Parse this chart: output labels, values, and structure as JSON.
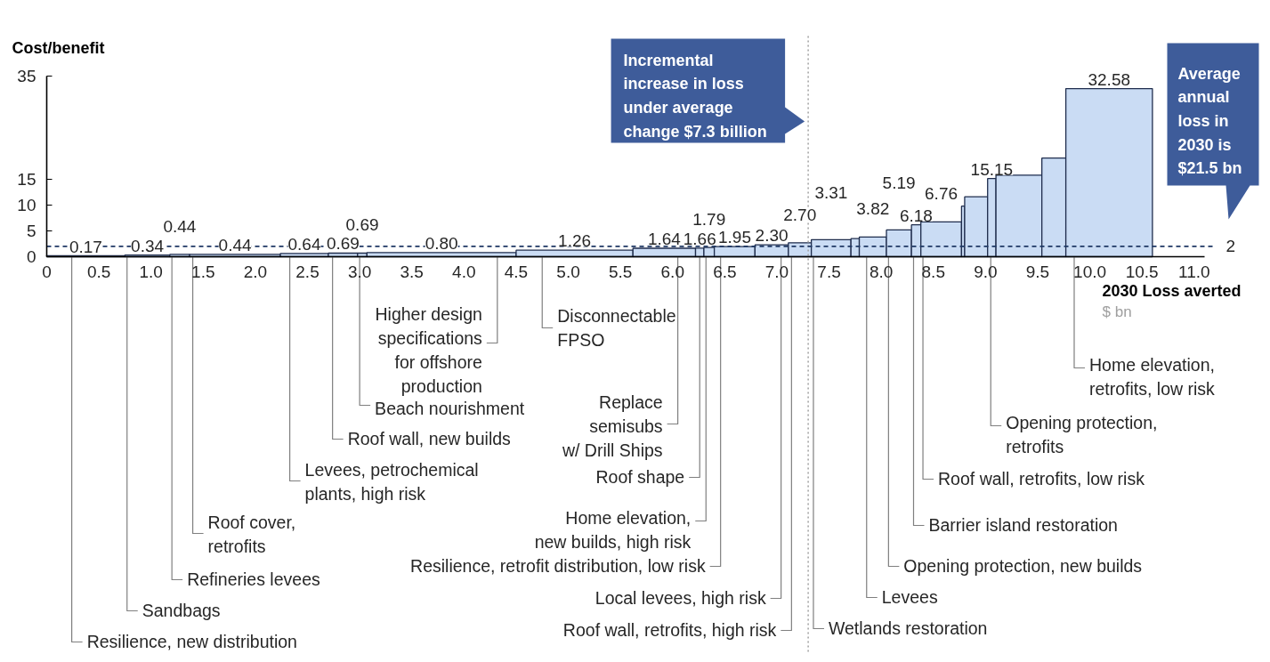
{
  "chart_data": {
    "type": "histogram",
    "ylabel": "Cost/benefit",
    "xlabel": "2030 Loss averted",
    "bins": [
      0,
      0.75,
      1.18,
      1.37,
      2.24,
      2.7,
      2.98,
      3.07,
      4.5,
      5.62,
      6.22,
      6.3,
      6.4,
      6.79,
      7.11,
      7.33,
      7.71,
      7.79,
      8.05,
      8.29,
      8.38,
      8.77,
      8.8,
      9.02,
      9.1,
      9.54,
      9.77,
      10.6
    ],
    "values": [
      0.17,
      0.34,
      0.44,
      0.44,
      0.64,
      0.69,
      0.69,
      0.8,
      1.26,
      1.64,
      1.66,
      1.79,
      1.95,
      2.3,
      2.7,
      3.31,
      3.5,
      3.82,
      5.19,
      6.18,
      6.76,
      9.8,
      11.6,
      15.15,
      15.8,
      19.1,
      32.58
    ],
    "value_labels": [
      "0.17",
      "0.34",
      "0.44",
      "0.44",
      "0.64",
      "0.69",
      "0.69",
      "0.80",
      "1.26",
      "1.64",
      "1.66",
      "1.79",
      "1.95",
      "2.30",
      "2.70",
      "3.31",
      null,
      "3.82",
      "5.19",
      "6.18",
      "6.76",
      null,
      null,
      "15.15",
      null,
      null,
      "32.58"
    ],
    "color": "#cadcf4",
    "xlim": [
      0,
      11.1
    ],
    "xticks": [
      0,
      0.5,
      {
        "value": 1,
        "label": "1.0"
      },
      1.5,
      {
        "value": 2,
        "label": "2.0"
      },
      2.5,
      {
        "value": 3,
        "label": "3.0"
      },
      3.5,
      {
        "value": 4,
        "label": "4.0"
      },
      4.5,
      {
        "value": 5,
        "label": "5.0"
      },
      5.5,
      {
        "value": 6,
        "label": "6.0"
      },
      6.5,
      {
        "value": 7,
        "label": "7.0"
      },
      7.5,
      {
        "value": 8,
        "label": "8.0"
      },
      8.5,
      {
        "value": 9,
        "label": "9.0"
      },
      9.5,
      {
        "value": 10,
        "label": "10.0"
      },
      10.5,
      {
        "value": 11,
        "label": "11.0"
      }
    ],
    "ylim": [
      0,
      35
    ],
    "yticks": [
      0,
      5,
      10,
      15,
      35
    ],
    "ref_lines": [
      {
        "axis": "x",
        "value": 7.3,
        "label": "Incremental increase in loss under average change $7.3 billion",
        "color": "#a6a6a6",
        "line_style": "dotted"
      },
      {
        "axis": "y",
        "value": 2,
        "label": "2",
        "color": "#1f3864",
        "line_style": "dashed"
      }
    ],
    "annotations": [
      "Average annual loss in 2030 is $21.5 bn",
      "$ bn",
      {
        "text": "Resilience, new distribution",
        "x": 0.24,
        "y": 0
      },
      {
        "text": "Sandbags",
        "x": 0.77,
        "y": 0
      },
      {
        "text": "Refineries levees",
        "x": 1.2,
        "y": 0
      },
      {
        "text": "Roof cover, retrofits",
        "x": 1.4,
        "y": 0
      },
      {
        "text": "Levees, petrochemical plants, high risk",
        "x": 2.33,
        "y": 0
      },
      {
        "text": "Roof wall, new builds",
        "x": 2.74,
        "y": 0
      },
      {
        "text": "Beach nourishment",
        "x": 3.0,
        "y": 0
      },
      {
        "text": "Higher design specifications for offshore production",
        "x": 4.32,
        "y": 0
      },
      {
        "text": "Disconnectable FPSO",
        "x": 4.75,
        "y": 0
      },
      {
        "text": "Replace semisubs w/ Drill Ships",
        "x": 6.05,
        "y": 0
      },
      {
        "text": "Roof shape",
        "x": 6.26,
        "y": 0
      },
      {
        "text": "Home elevation, new builds, high risk",
        "x": 6.32,
        "y": 0
      },
      {
        "text": "Resilience, retrofit distribution, low risk",
        "x": 6.46,
        "y": 0
      },
      {
        "text": "Local levees, high risk",
        "x": 7.04,
        "y": 0
      },
      {
        "text": "Roof wall, retrofits, high risk",
        "x": 7.14,
        "y": 0
      },
      {
        "text": "Wetlands restoration",
        "x": 7.35,
        "y": 0
      },
      {
        "text": "Levees",
        "x": 7.86,
        "y": 0
      },
      {
        "text": "Opening protection, new builds",
        "x": 8.07,
        "y": 0
      },
      {
        "text": "Barrier island restoration",
        "x": 8.31,
        "y": 0
      },
      {
        "text": "Roof wall, retrofits, low risk",
        "x": 8.4,
        "y": 0
      },
      {
        "text": "Opening protection, retrofits",
        "x": 9.05,
        "y": 0
      },
      {
        "text": "Home elevation, retrofits, low risk",
        "x": 9.85,
        "y": 0
      }
    ]
  }
}
